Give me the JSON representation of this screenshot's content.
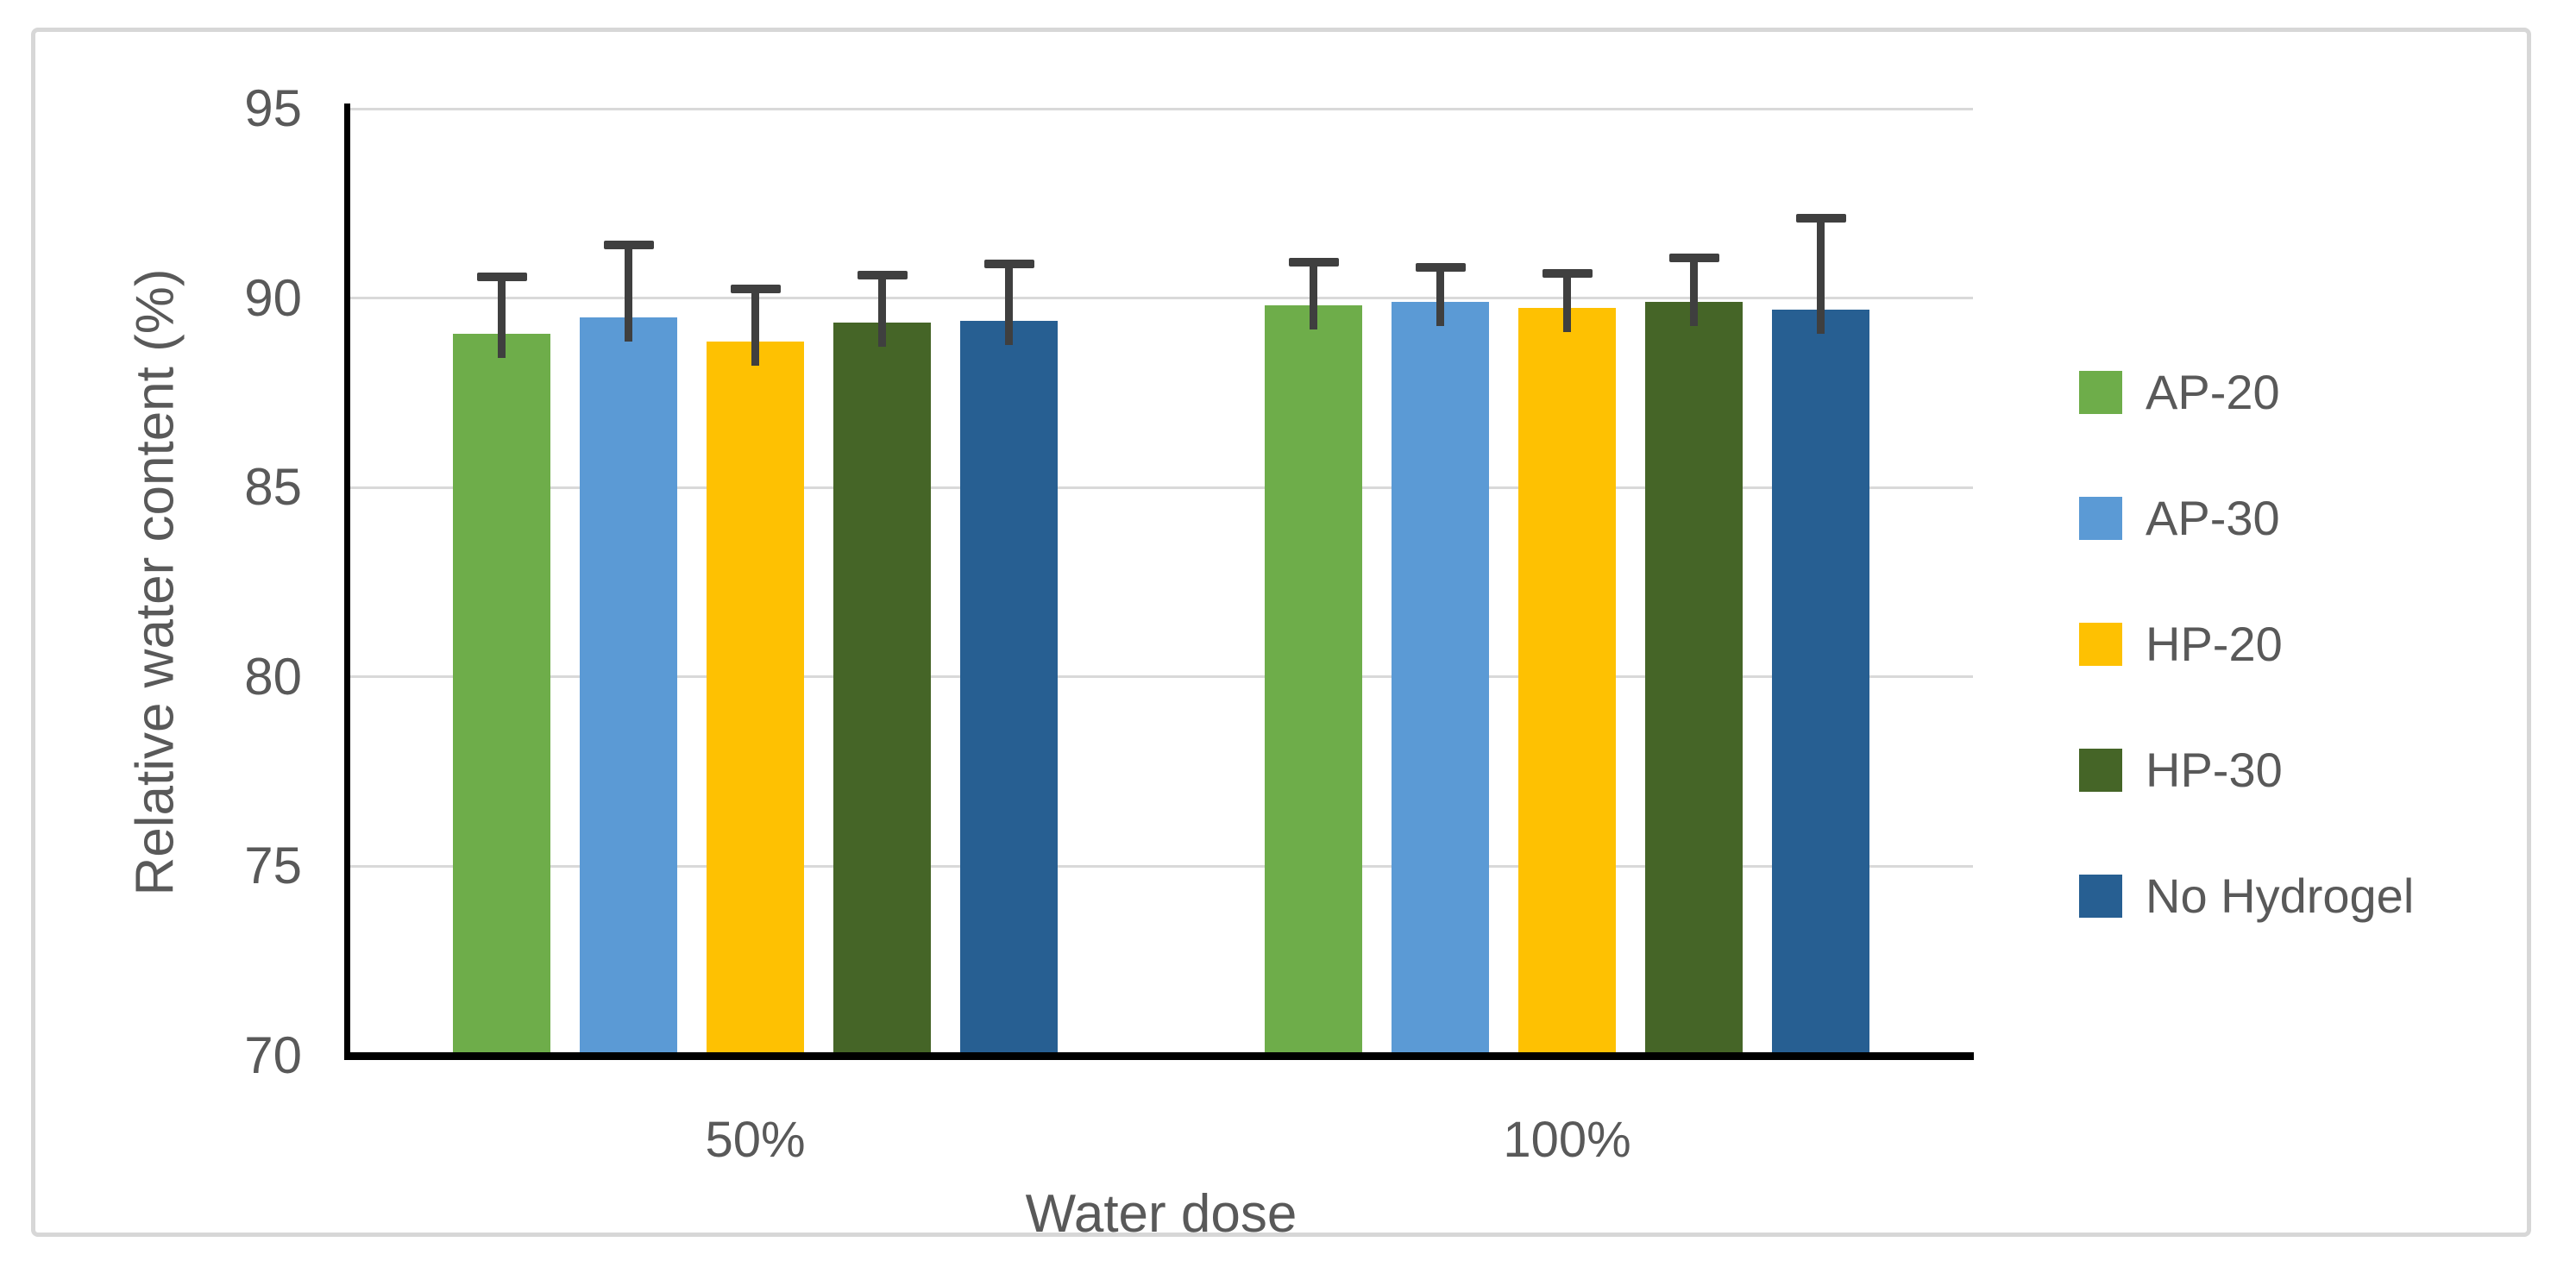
{
  "figure": {
    "background_color": "#ffffff",
    "border_color": "#d7d7d7"
  },
  "chart_data": {
    "type": "bar",
    "title": "",
    "categories": [
      "50%",
      "100%"
    ],
    "series": [
      {
        "name": "AP-20",
        "color": "#6ead4a",
        "values": [
          89.05,
          89.8
        ],
        "errors_plus": [
          1.5,
          1.15
        ]
      },
      {
        "name": "AP-30",
        "color": "#5b9ad5",
        "values": [
          89.5,
          89.9
        ],
        "errors_plus": [
          1.9,
          0.9
        ]
      },
      {
        "name": "HP-20",
        "color": "#fec102",
        "values": [
          88.85,
          89.75
        ],
        "errors_plus": [
          1.4,
          0.9
        ]
      },
      {
        "name": "HP-30",
        "color": "#456527",
        "values": [
          89.35,
          89.9
        ],
        "errors_plus": [
          1.25,
          1.15
        ]
      },
      {
        "name": "No Hydrogel",
        "color": "#275f92",
        "values": [
          89.4,
          89.7
        ],
        "errors_plus": [
          1.5,
          2.4
        ]
      }
    ],
    "xlabel": "Water dose",
    "ylabel": "Relative water content (%)",
    "ylim": [
      70,
      95
    ],
    "yticks": [
      70,
      75,
      80,
      85,
      90,
      95
    ],
    "grid": "horizontal-gridlines-on",
    "legend_position": "right",
    "error_bar_color": "#3f3f3f",
    "gridline_color": "#d9d9d9",
    "axis_line_color": "#000000",
    "label_color": "#595959"
  }
}
